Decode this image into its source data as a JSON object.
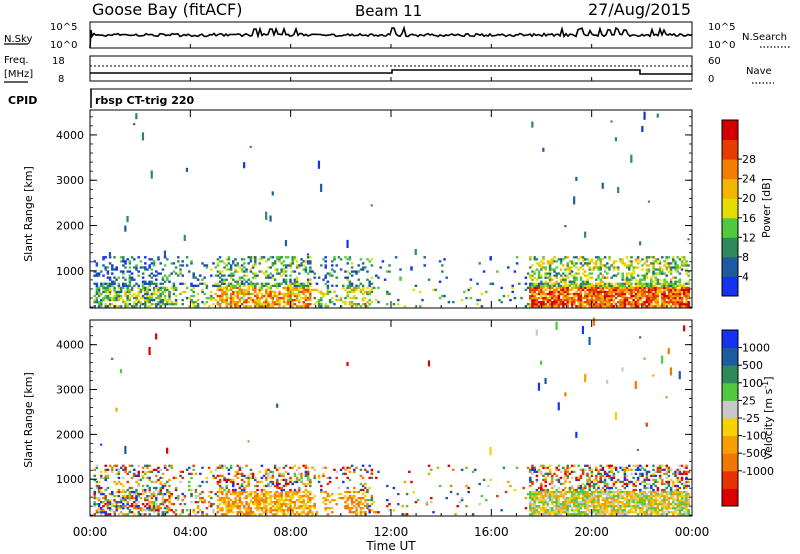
{
  "header": {
    "station": "Goose Bay (fitACF)",
    "beam": "Beam 11",
    "date": "27/Aug/2015"
  },
  "top_panels": {
    "nsky_label": "N.Sky",
    "nsky_ticks": [
      "10^5",
      "10^0"
    ],
    "nsearch_label": "N.Search",
    "nsearch_ticks": [
      "10^5",
      "10^0"
    ],
    "freq_label": "Freq.",
    "freq_unit": "[MHz]",
    "freq_ticks": [
      "18",
      "8"
    ],
    "nave_label": "Nave",
    "nave_ticks": [
      "60",
      "0"
    ],
    "cpid_label": "CPID",
    "cpid_text": "rbsp CT-trig 220"
  },
  "colors": {
    "power_scale": [
      "#1432f0",
      "#1e5aa0",
      "#2e8a5a",
      "#52c83c",
      "#e6dc00",
      "#f5b400",
      "#f57d00",
      "#e63c00",
      "#d20000"
    ],
    "velocity_scale": [
      "#1432f0",
      "#1e5aa0",
      "#2e8a5a",
      "#52c83c",
      "#c8c8c8",
      "#f5d200",
      "#f5a000",
      "#f07800",
      "#e63200",
      "#dc0000"
    ]
  },
  "chart_data": [
    {
      "type": "heatmap",
      "name": "power",
      "ylabel": "Slant Range [km]",
      "yticks": [
        "1000",
        "2000",
        "3000",
        "4000"
      ],
      "ylim": [
        180,
        4550
      ],
      "colorbar_label": "Power [dB]",
      "colorbar_ticks": [
        "4",
        "8",
        "12",
        "16",
        "20",
        "24",
        "28"
      ],
      "colorbar_range": [
        0,
        32
      ]
    },
    {
      "type": "heatmap",
      "name": "velocity",
      "ylabel": "Slant Range [km]",
      "yticks": [
        "1000",
        "2000",
        "3000",
        "4000"
      ],
      "ylim": [
        180,
        4550
      ],
      "colorbar_label": "Velocity [m s",
      "colorbar_label_sup": "-1",
      "colorbar_label_end": "]",
      "colorbar_ticks": [
        "1000",
        "500",
        "100",
        "25",
        "-25",
        "-100",
        "-500",
        "-1000"
      ]
    }
  ],
  "xaxis": {
    "ticks": [
      "00:00",
      "04:00",
      "08:00",
      "12:00",
      "16:00",
      "20:00",
      "00:00"
    ],
    "label": "Time UT",
    "range_hours": [
      0,
      24
    ]
  }
}
